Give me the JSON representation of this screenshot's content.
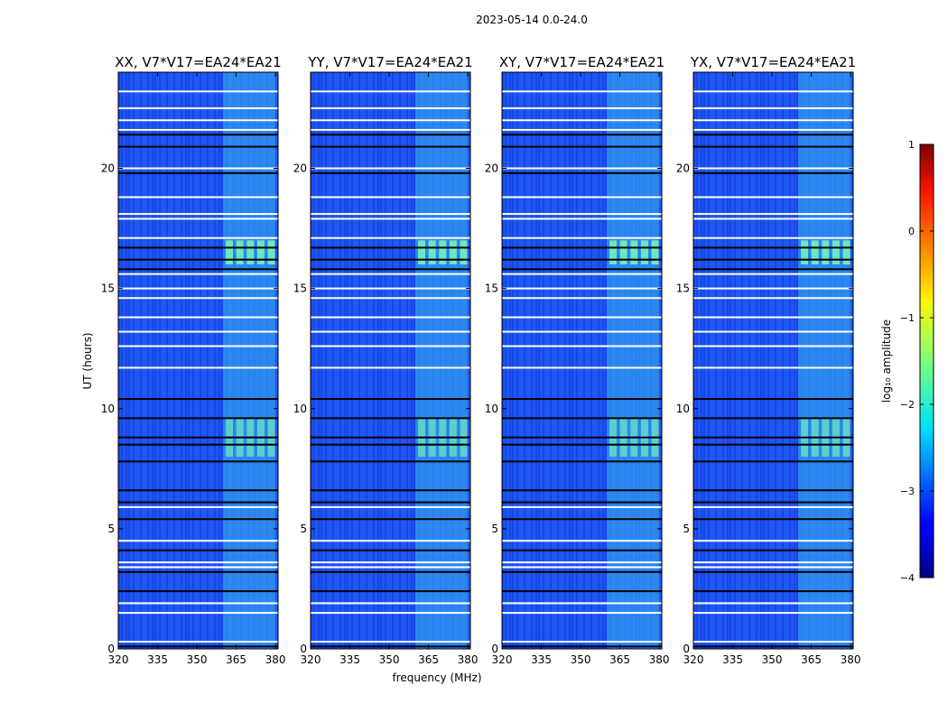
{
  "suptitle": "2023-05-14 0.0-24.0",
  "chart_data": {
    "type": "heatmap",
    "title": "2023-05-14 0.0-24.0",
    "xlabel": "frequency (MHz)",
    "ylabel": "UT (hours)",
    "xlim": [
      320,
      381
    ],
    "ylim": [
      0,
      24
    ],
    "xticks": [
      "320",
      "335",
      "350",
      "365",
      "380"
    ],
    "xtick_values": [
      320,
      335,
      350,
      365,
      380
    ],
    "yticks": [
      "0",
      "5",
      "10",
      "15",
      "20"
    ],
    "ytick_values": [
      0,
      5,
      10,
      15,
      20
    ],
    "panels": [
      {
        "name": "XX",
        "title": "XX, V7*V17=EA24*EA21"
      },
      {
        "name": "YY",
        "title": "YY, V7*V17=EA24*EA21"
      },
      {
        "name": "XY",
        "title": "XY, V7*V17=EA24*EA21"
      },
      {
        "name": "YX",
        "title": "YX, V7*V17=EA24*EA21"
      }
    ],
    "rfi_band_mhz": [
      360,
      380
    ],
    "flagged_ut_hours": [
      0.3,
      1.5,
      1.9,
      3.4,
      3.6,
      4.5,
      5.9,
      11.7,
      12.6,
      13.2,
      13.8,
      14.6,
      15.0,
      15.6,
      17.1,
      17.9,
      18.1,
      18.8,
      20.0,
      21.6,
      22.0,
      22.5,
      23.2
    ],
    "dropout_ut_hours": [
      0.1,
      2.4,
      3.2,
      4.1,
      5.4,
      6.1,
      6.6,
      7.8,
      8.5,
      8.8,
      9.6,
      10.4,
      15.8,
      16.2,
      16.7,
      19.8,
      20.9,
      21.4
    ],
    "colorbar": {
      "label": "log₁₀ amplitude",
      "min": -4,
      "max": 1,
      "ticks": [
        "−4",
        "−3",
        "−2",
        "−1",
        "0",
        "1"
      ],
      "tick_values": [
        -4,
        -3,
        -2,
        -1,
        0,
        1
      ],
      "colormap": "jet"
    }
  },
  "colors": {
    "background_low": "#0a24d8",
    "background_mid": "#1f58f2",
    "band": "#33a8f0",
    "burst": "#7fffb4",
    "flag": "#ffffff",
    "dropout": "#000000"
  }
}
